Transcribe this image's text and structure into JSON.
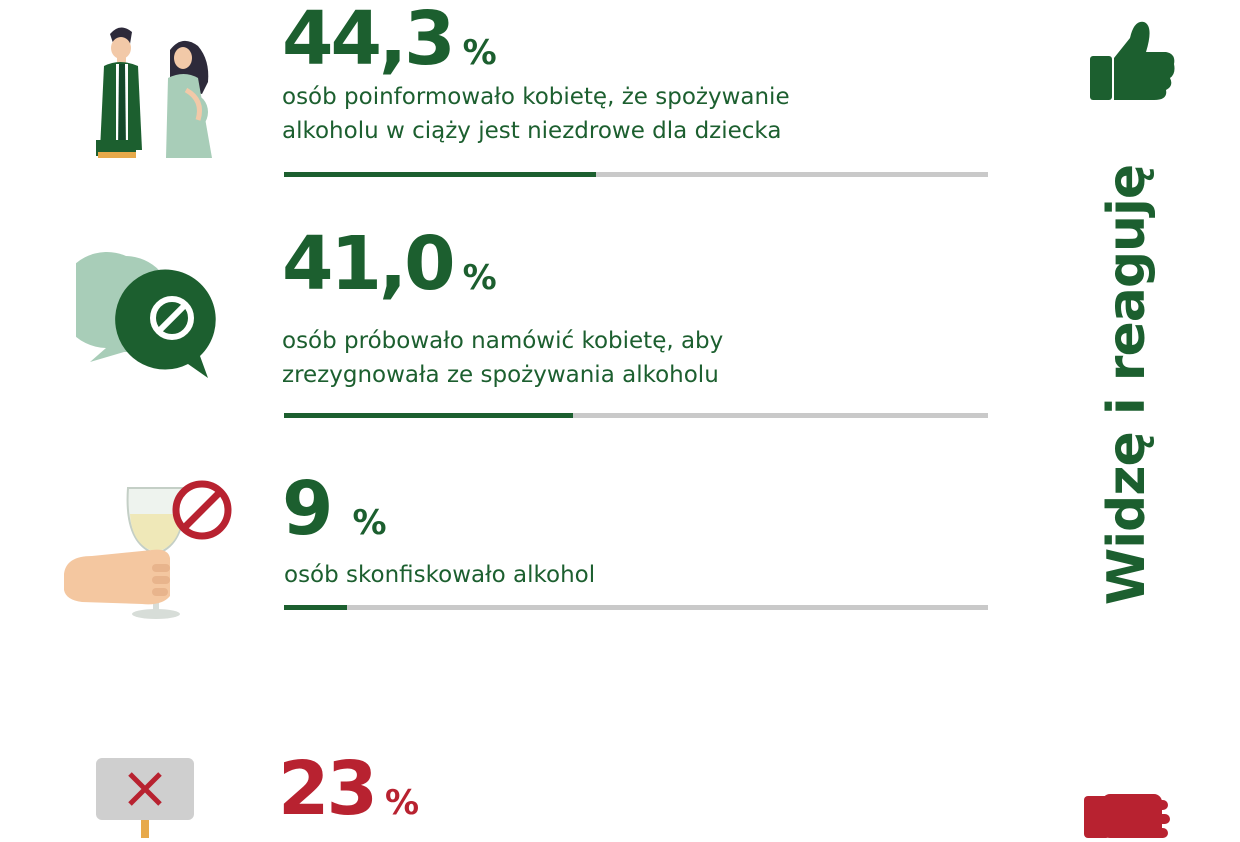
{
  "section_title": "Widzę i reaguję",
  "stats": [
    {
      "value": "44,3",
      "unit": "%",
      "lines": [
        "osób poinformowało kobietę, że spożywanie",
        "alkoholu w ciąży jest niezdrowe dla dziecka"
      ],
      "percent": 44.3,
      "icon": "man-and-pregnant-woman-icon"
    },
    {
      "value": "41,0",
      "unit": "%",
      "lines": [
        "osób próbowało namówić kobietę, aby",
        "zrezygnowała ze spożywania alkoholu"
      ],
      "percent": 41.0,
      "icon": "speech-bubbles-forbidden-icon"
    },
    {
      "value": "9",
      "unit": "%",
      "lines": [
        "osób skonfiskowało alkohol"
      ],
      "percent": 9,
      "icon": "hand-wine-glass-forbidden-icon"
    },
    {
      "value": "23",
      "unit": "%",
      "icon": "x-sign-icon"
    }
  ],
  "icons": {
    "thumbs_up": "thumbs-up-icon",
    "thumbs_down": "thumbs-down-icon"
  },
  "colors": {
    "green": "#1c5f2f",
    "red": "#b82230",
    "bar_track": "#c9c9c9"
  }
}
